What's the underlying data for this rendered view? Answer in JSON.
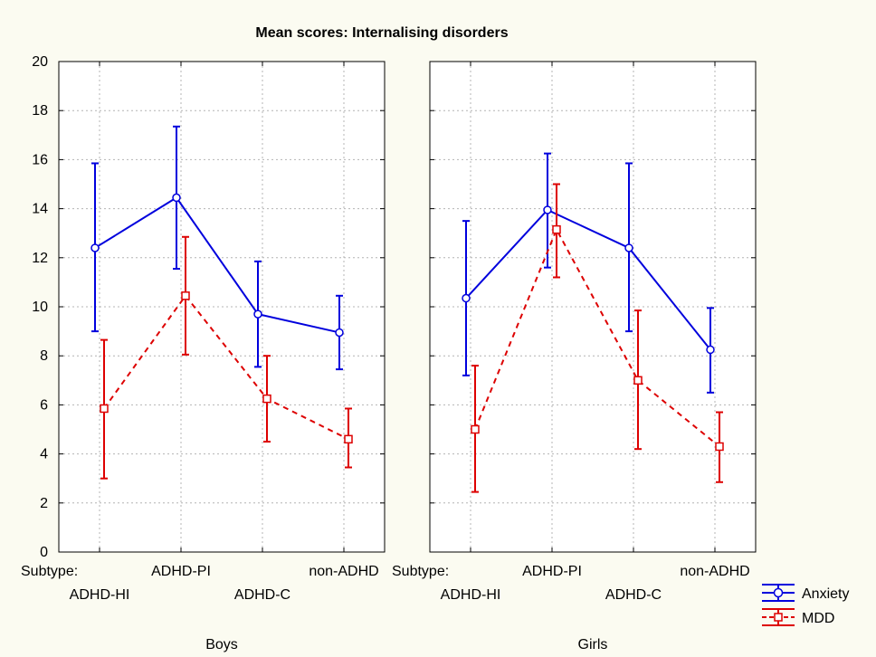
{
  "chart_data": {
    "type": "line",
    "title": "Mean scores: Internalising disorders",
    "ylim": [
      0,
      20
    ],
    "yticks": [
      "0",
      "2",
      "4",
      "6",
      "8",
      "10",
      "12",
      "14",
      "16",
      "18",
      "20"
    ],
    "subtype_label": "Subtype:",
    "categories": [
      "ADHD-HI",
      "ADHD-PI",
      "ADHD-C",
      "non-ADHD"
    ],
    "grid": true,
    "legend_position": "bottom-right",
    "series_style": {
      "Anxiety": {
        "color": "#0000dd",
        "marker": "circle",
        "line": "solid"
      },
      "MDD": {
        "color": "#dd0000",
        "marker": "square",
        "line": "dashed"
      }
    },
    "legend": [
      "Anxiety",
      "MDD"
    ],
    "panels": [
      {
        "name": "Boys",
        "series": [
          {
            "name": "Anxiety",
            "values": [
              12.4,
              14.45,
              9.7,
              8.95
            ],
            "lower": [
              9.0,
              11.55,
              7.55,
              7.45
            ],
            "upper": [
              15.85,
              17.35,
              11.85,
              10.45
            ]
          },
          {
            "name": "MDD",
            "values": [
              5.85,
              10.45,
              6.25,
              4.6
            ],
            "lower": [
              3.0,
              8.05,
              4.5,
              3.45
            ],
            "upper": [
              8.65,
              12.85,
              8.0,
              5.85
            ]
          }
        ]
      },
      {
        "name": "Girls",
        "series": [
          {
            "name": "Anxiety",
            "values": [
              10.35,
              13.95,
              12.4,
              8.25
            ],
            "lower": [
              7.2,
              11.6,
              9.0,
              6.5
            ],
            "upper": [
              13.5,
              16.25,
              15.85,
              9.95
            ]
          },
          {
            "name": "MDD",
            "values": [
              5.0,
              13.15,
              7.0,
              4.3
            ],
            "lower": [
              2.45,
              11.2,
              4.2,
              2.85
            ],
            "upper": [
              7.6,
              15.0,
              9.85,
              5.7
            ]
          }
        ]
      }
    ]
  }
}
